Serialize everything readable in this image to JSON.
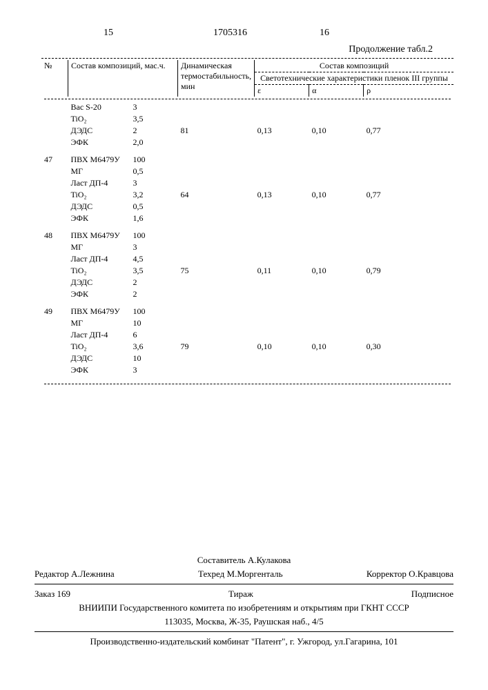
{
  "page": {
    "left_num": "15",
    "doc_num": "1705316",
    "right_num": "16"
  },
  "table_caption": "Продолжение табл.2",
  "headers": {
    "c1": "№",
    "c2": "Состав композиций, мас.ч.",
    "c3": "Динамическая термостабильность, мин",
    "c4": "Состав композиций",
    "c4sub": "Светотехнические характеристики пленок III группы",
    "e": "ε",
    "a": "α",
    "p": "ρ"
  },
  "rows": [
    {
      "n": "",
      "items": [
        [
          "Вас S-20",
          "3"
        ],
        [
          "TiO₂",
          "3,5"
        ],
        [
          "ДЭДС",
          "2"
        ],
        [
          "ЭФК",
          "2,0"
        ]
      ],
      "dyn": "81",
      "e": "0,13",
      "a": "0,10",
      "p": "0,77"
    },
    {
      "n": "47",
      "items": [
        [
          "ПВХ М6479У",
          "100"
        ],
        [
          "МГ",
          "0,5"
        ],
        [
          "Ласт ДП-4",
          "3"
        ],
        [
          "TiO₂",
          "3,2"
        ],
        [
          "ДЭДС",
          "0,5"
        ],
        [
          "ЭФК",
          "1,6"
        ]
      ],
      "dyn": "64",
      "e": "0,13",
      "a": "0,10",
      "p": "0,77"
    },
    {
      "n": "48",
      "items": [
        [
          "ПВХ М6479У",
          "100"
        ],
        [
          "МГ",
          "3"
        ],
        [
          "Ласт ДП-4",
          "4,5"
        ],
        [
          "TiO₂",
          "3,5"
        ],
        [
          "ДЭДС",
          "2"
        ],
        [
          "ЭФК",
          "2"
        ]
      ],
      "dyn": "75",
      "e": "0,11",
      "a": "0,10",
      "p": "0,79"
    },
    {
      "n": "49",
      "items": [
        [
          "ПВХ М6479У",
          "100"
        ],
        [
          "МГ",
          "10"
        ],
        [
          "Ласт ДП-4",
          "6"
        ],
        [
          "TiO₂",
          "3,6"
        ],
        [
          "ДЭДС",
          "10"
        ],
        [
          "ЭФК",
          "3"
        ]
      ],
      "dyn": "79",
      "e": "0,10",
      "a": "0,10",
      "p": "0,30"
    }
  ],
  "footer": {
    "composer": "Составитель А.Кулакова",
    "editor": "Редактор А.Лежнина",
    "tehred": "Техред М.Моргенталь",
    "corrector": "Корректор О.Кравцова",
    "order": "Заказ 169",
    "tiraj": "Тираж",
    "sign": "Подписное",
    "org": "ВНИИПИ Государственного комитета по изобретениям и открытиям при ГКНТ СССР",
    "addr": "113035, Москва, Ж-35, Раушская наб., 4/5",
    "printer": "Производственно-издательский комбинат \"Патент\", г. Ужгород, ул.Гагарина, 101"
  }
}
